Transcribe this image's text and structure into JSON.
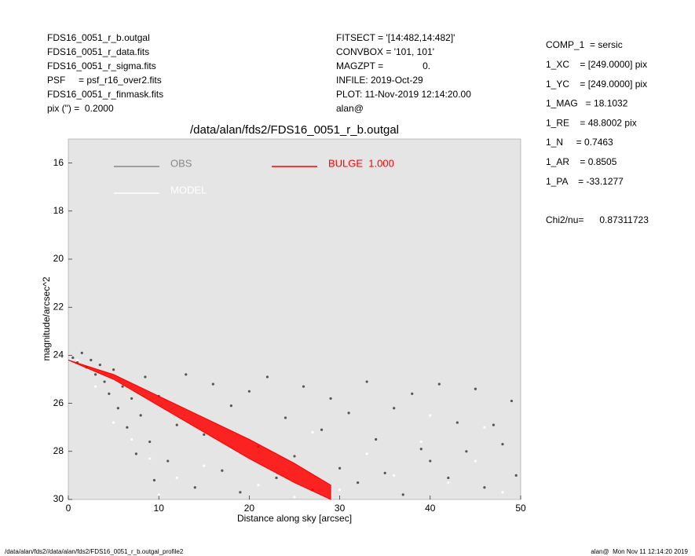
{
  "header": {
    "left": [
      "FDS16_0051_r_b.outgal",
      "FDS16_0051_r_data.fits",
      "FDS16_0051_r_sigma.fits",
      "PSF     = psf_r16_over2.fits",
      "FDS16_0051_r_finmask.fits",
      "pix (\") =  0.2000"
    ],
    "middle": [
      "FITSECT = '[14:482,14:482]'",
      "CONVBOX = '101, 101'",
      "MAGZPT =               0.",
      "INFILE: 2019-Oct-29",
      "PLOT: 11-Nov-2019 12:14:20.00",
      "alan@"
    ],
    "right": [
      "COMP_1  = sersic",
      "1_XC    = [249.0000] pix",
      "1_YC    = [249.0000] pix",
      "1_MAG   = 18.1032",
      "1_RE    = 48.8002 pix",
      "1_N     = 0.7463",
      "1_AR    = 0.8505",
      "1_PA    = -33.1277"
    ],
    "chi2": "Chi2/nu=      0.87311723"
  },
  "footer": {
    "left": "/data/alan/fds2//data/alan/fds2/FDS16_0051_r_b.outgal_profile2",
    "right": "alan@  Mon Nov 11 12:14:20 2019"
  },
  "chart_data": {
    "type": "scatter",
    "title": "/data/alan/fds2/FDS16_0051_r_b.outgal",
    "x_label": "Distance along sky [arcsec]",
    "y_label": "magnitude/arcsec^2",
    "xlim": [
      0,
      50
    ],
    "xticks": [
      0,
      10,
      20,
      30,
      40,
      50
    ],
    "ylim": [
      30,
      15
    ],
    "yticks": [
      16,
      18,
      20,
      22,
      24,
      26,
      28,
      30
    ],
    "background": "#e5e5e5",
    "series": [
      {
        "name": "OBS",
        "color": "#555555",
        "legend_color": "#888888",
        "x": [
          0.5,
          1,
          1.5,
          2,
          2.5,
          3,
          3.5,
          4,
          4.5,
          5,
          5.5,
          6,
          6.5,
          7,
          7.5,
          8,
          8.5,
          9,
          9.5,
          10,
          11,
          12,
          13,
          14,
          15,
          16,
          17,
          18,
          19,
          20,
          21,
          22,
          23,
          24,
          25,
          26,
          27,
          28,
          29,
          30,
          31,
          32,
          33,
          34,
          35,
          36,
          37,
          38,
          39,
          40,
          41,
          42,
          43,
          44,
          45,
          46,
          47,
          48,
          49,
          49.5
        ],
        "values": [
          24.1,
          24.3,
          23.9,
          24.5,
          24.2,
          24.8,
          24.4,
          25.1,
          25.6,
          24.6,
          26.2,
          25.3,
          27.0,
          25.8,
          28.1,
          26.5,
          24.9,
          27.6,
          29.2,
          25.7,
          28.4,
          26.9,
          24.8,
          29.5,
          27.3,
          25.2,
          28.8,
          26.1,
          29.7,
          25.5,
          27.8,
          24.9,
          29.1,
          26.6,
          28.2,
          25.3,
          29.6,
          27.1,
          25.8,
          28.7,
          26.4,
          29.3,
          25.1,
          27.5,
          28.9,
          26.2,
          29.8,
          25.6,
          27.9,
          28.4,
          25.2,
          29.1,
          26.8,
          28.0,
          25.4,
          29.5,
          26.9,
          27.7,
          25.9,
          29.0
        ]
      },
      {
        "name": "MODEL",
        "color": "#ffffff",
        "legend_color": "#ffffff",
        "x": [
          1,
          3,
          5,
          7,
          9,
          12,
          15,
          18,
          21,
          24,
          27,
          30,
          33,
          36,
          39,
          42,
          45,
          48,
          10,
          25,
          40,
          46
        ],
        "values": [
          24.2,
          25.3,
          26.8,
          27.5,
          28.3,
          29.1,
          28.6,
          27.9,
          29.4,
          28.8,
          27.2,
          29.6,
          28.1,
          29.0,
          27.6,
          29.3,
          28.4,
          29.7,
          29.8,
          29.9,
          26.5,
          27.0
        ]
      },
      {
        "name": "BULGE  1.000",
        "color": "#ff0000",
        "legend_color": "#ff0000",
        "band": true,
        "x": [
          0,
          5,
          10,
          15,
          20,
          25,
          29
        ],
        "values": [
          24.2,
          24.8,
          25.7,
          26.6,
          27.5,
          28.5,
          29.4
        ],
        "values_low": [
          24.2,
          25.0,
          26.1,
          27.2,
          28.3,
          29.3,
          30.0
        ]
      }
    ]
  }
}
